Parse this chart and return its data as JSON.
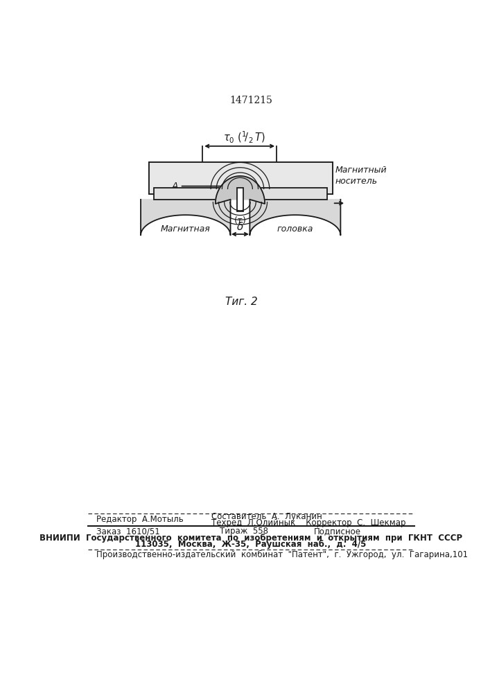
{
  "patent_number": "1471215",
  "fig_label": "Τиг. 2",
  "bg_color": "#ffffff",
  "line_color": "#1a1a1a",
  "label_magn_nositel": "Магнитный\nноситель",
  "label_A": "A",
  "label_magnitnaya": "Магнитная",
  "label_golovka": "головка",
  "footer_editor": "Редактор  А.Мотыль",
  "footer_sostavitel": "Составитель  А.  Луканин",
  "footer_tehred": "Техред  Л.Олийнык",
  "footer_korrektor": "Корректор  С.  Шекмар",
  "footer_zakaz": "Заказ  1610/51",
  "footer_tirazh": "Тираж  558",
  "footer_podpisnoe": "Подписное",
  "footer_vniиpi": "ВНИИПИ  Государственного  комитета  по  изобретениям  и  открытиям  при  ГКНТ  СССР",
  "footer_address": "113035,  Москва,  Ж-35,  Раушская  наб.,  д.  4/5",
  "footer_patent": "Производственно-издательский  комбинат  \"Патент\",  г.  Ужгород,  ул.  Гагарина,101"
}
